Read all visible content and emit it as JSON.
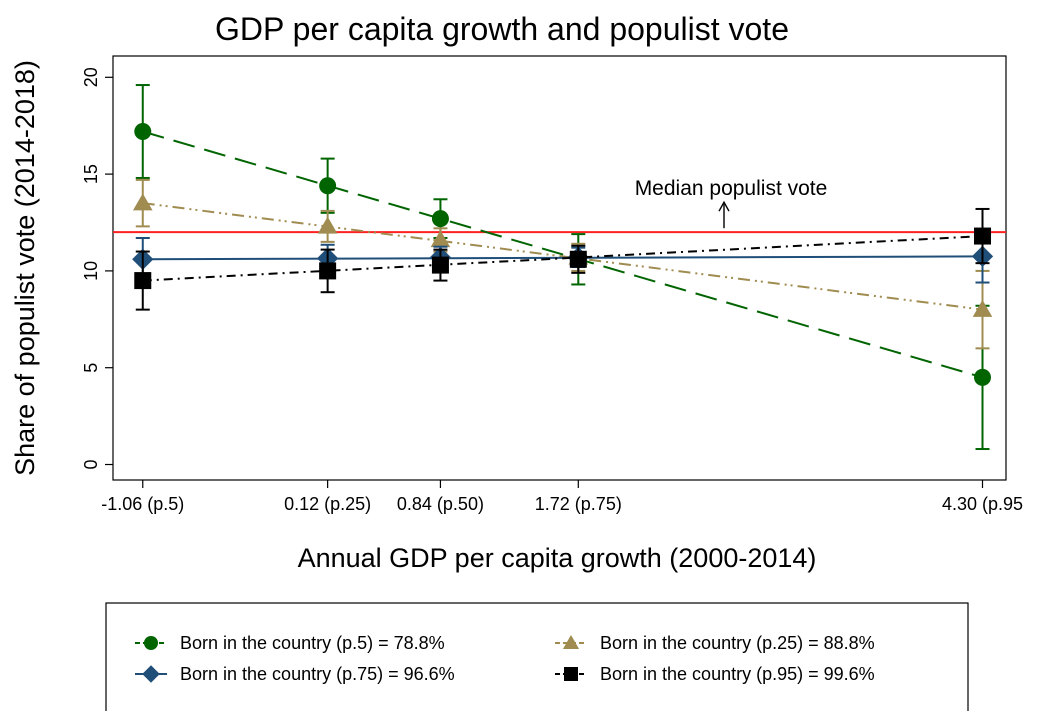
{
  "chart_data": {
    "type": "line",
    "title": "GDP per capita growth and populist vote",
    "xlabel": "Annual GDP per capita growth (2000-2014)",
    "ylabel": "Share of populist vote (2014-2018)",
    "x": [
      -1.06,
      0.12,
      0.84,
      1.72,
      4.3
    ],
    "x_tick_labels": [
      "-1.06 (p.5)",
      "0.12 (p.25)",
      "0.84 (p.50)",
      "1.72 (p.75)",
      "4.30 (p.95"
    ],
    "xlim": [
      -1.25,
      4.45
    ],
    "ylim": [
      -0.8,
      21.1
    ],
    "y_ticks": [
      0,
      5,
      10,
      15,
      20
    ],
    "grid": false,
    "legend_position": "bottom",
    "reference_line": {
      "y": 12.0,
      "label": "Median populist vote",
      "color": "#ff2020"
    },
    "series": [
      {
        "name": "Born in the country (p.5) = 78.8%",
        "color": "#006400",
        "marker": "circle",
        "dash": "dashed",
        "values": [
          17.2,
          14.4,
          12.7,
          10.6,
          4.5
        ],
        "ci_low": [
          14.8,
          13.0,
          11.7,
          9.3,
          0.8
        ],
        "ci_high": [
          19.6,
          15.8,
          13.7,
          11.9,
          8.2
        ],
        "fit": [
          17.2,
          4.5
        ]
      },
      {
        "name": "Born in the country (p.25) = 88.8%",
        "color": "#a08c50",
        "marker": "triangle",
        "dash": "dashdotdot",
        "values": [
          13.5,
          12.3,
          11.6,
          10.7,
          8.0
        ],
        "ci_low": [
          12.3,
          11.5,
          11.0,
          10.0,
          6.0
        ],
        "ci_high": [
          14.7,
          13.1,
          12.2,
          11.4,
          10.0
        ],
        "fit": [
          13.5,
          8.0
        ]
      },
      {
        "name": "Born in the country (p.75) = 96.6%",
        "color": "#1f4e79",
        "marker": "diamond",
        "dash": "solid",
        "values": [
          10.6,
          10.65,
          10.7,
          10.7,
          10.75
        ],
        "ci_low": [
          9.5,
          9.95,
          10.15,
          10.2,
          9.4
        ],
        "ci_high": [
          11.7,
          11.35,
          11.25,
          11.2,
          12.1
        ],
        "fit": [
          10.6,
          10.75
        ]
      },
      {
        "name": "Born in the country (p.95) = 99.6%",
        "color": "#000000",
        "marker": "square",
        "dash": "dashdot",
        "values": [
          9.5,
          10.0,
          10.3,
          10.6,
          11.8
        ],
        "ci_low": [
          8.0,
          8.9,
          9.5,
          9.9,
          10.4
        ],
        "ci_high": [
          11.0,
          11.1,
          11.1,
          11.3,
          13.2
        ],
        "fit": [
          9.5,
          11.8
        ]
      }
    ]
  }
}
